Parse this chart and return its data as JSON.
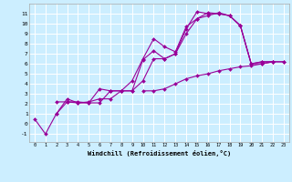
{
  "xlabel": "Windchill (Refroidissement éolien,°C)",
  "bg_color": "#cceeff",
  "grid_color": "#ffffff",
  "line_color": "#990099",
  "marker": "D",
  "markersize": 2,
  "linewidth": 0.8,
  "xlim": [
    -0.5,
    23.5
  ],
  "ylim": [
    -1.8,
    12.0
  ],
  "xticks": [
    0,
    1,
    2,
    3,
    4,
    5,
    6,
    7,
    8,
    9,
    10,
    11,
    12,
    13,
    14,
    15,
    16,
    17,
    18,
    19,
    20,
    21,
    22,
    23
  ],
  "yticks": [
    -1,
    0,
    1,
    2,
    3,
    4,
    5,
    6,
    7,
    8,
    9,
    10,
    11
  ],
  "lines": [
    [
      0.5,
      -1.0,
      1.0,
      2.2,
      2.2,
      2.1,
      2.1,
      3.3,
      3.3,
      3.3,
      6.4,
      7.3,
      6.5,
      7.0,
      9.5,
      11.2,
      11.0,
      11.0,
      10.8,
      9.8,
      6.0,
      6.0,
      6.2,
      6.2
    ],
    [
      null,
      null,
      1.0,
      2.5,
      2.1,
      2.1,
      3.5,
      3.3,
      3.3,
      4.3,
      6.5,
      8.5,
      7.7,
      7.2,
      9.7,
      10.5,
      11.1,
      11.0,
      10.8,
      9.8,
      6.0,
      6.2,
      6.2,
      null
    ],
    [
      null,
      null,
      2.2,
      2.2,
      2.1,
      2.2,
      2.5,
      2.5,
      3.3,
      3.3,
      4.3,
      6.5,
      6.5,
      7.0,
      9.0,
      10.5,
      10.8,
      11.1,
      10.8,
      9.8,
      6.0,
      6.2,
      6.2,
      null
    ],
    [
      null,
      null,
      null,
      null,
      null,
      null,
      null,
      null,
      null,
      null,
      3.3,
      3.3,
      3.5,
      4.0,
      4.5,
      4.8,
      5.0,
      5.3,
      5.5,
      5.7,
      5.8,
      6.0,
      6.2,
      6.2
    ]
  ]
}
